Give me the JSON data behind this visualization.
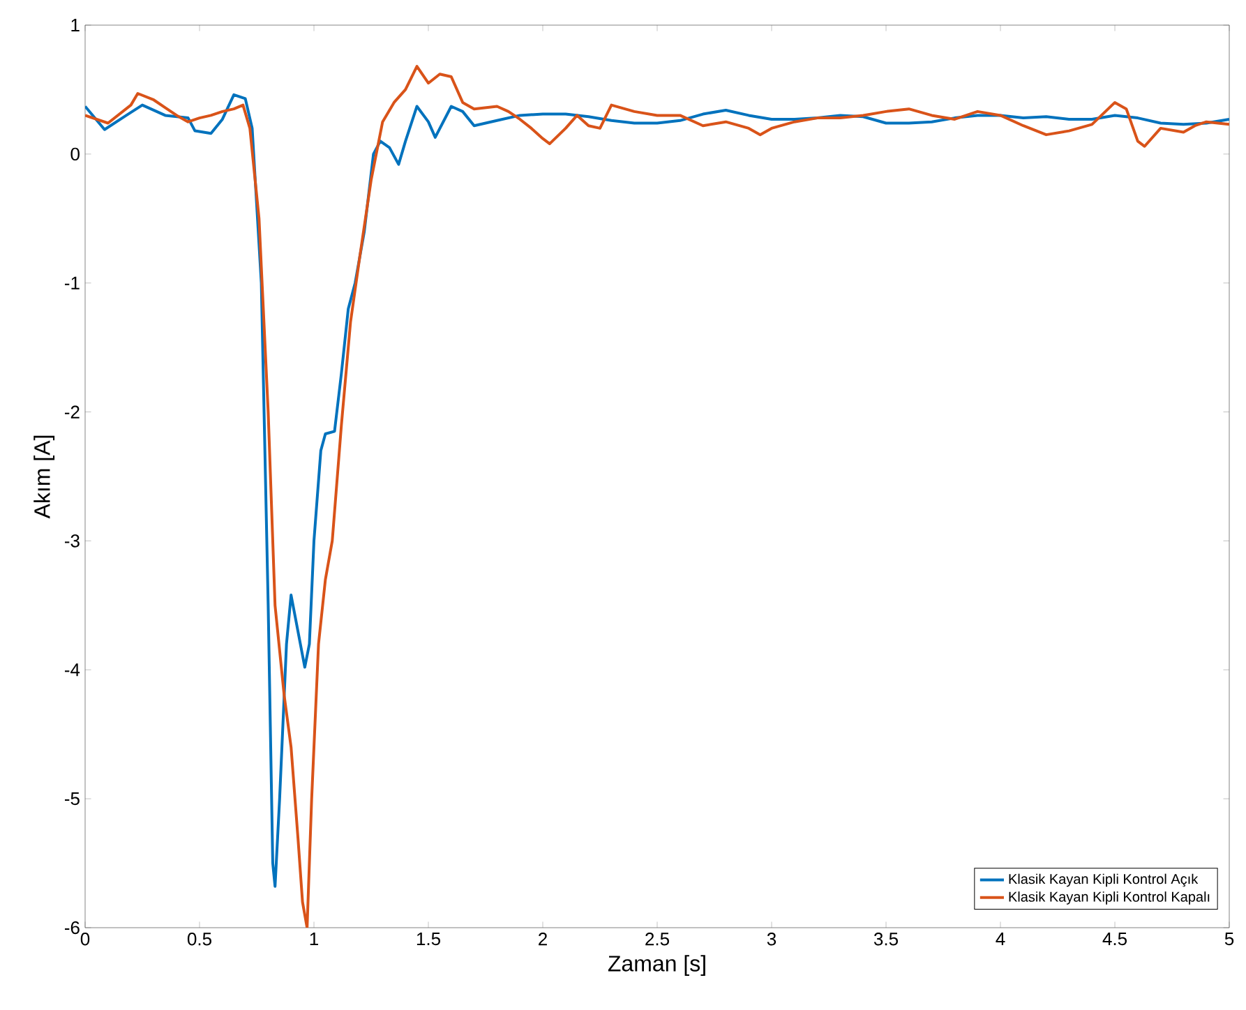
{
  "chart_data": {
    "type": "line",
    "xlabel": "Zaman [s]",
    "ylabel": "Akım [A]",
    "xlim": [
      0,
      5
    ],
    "ylim": [
      -6,
      1
    ],
    "xticks": [
      0,
      0.5,
      1,
      1.5,
      2,
      2.5,
      3,
      3.5,
      4,
      4.5,
      5
    ],
    "yticks": [
      -6,
      -5,
      -4,
      -3,
      -2,
      -1,
      0,
      1
    ],
    "grid": false,
    "legend": "bottom right",
    "line_style": "solid",
    "marker": "none",
    "series": [
      {
        "name": "Klasik Kayan Kipli Kontrol Açık",
        "color": "#0072bd",
        "x": [
          0,
          0.085,
          0.18,
          0.25,
          0.35,
          0.45,
          0.48,
          0.55,
          0.6,
          0.65,
          0.7,
          0.73,
          0.77,
          0.8,
          0.82,
          0.83,
          0.85,
          0.88,
          0.9,
          0.93,
          0.96,
          0.98,
          1.0,
          1.03,
          1.05,
          1.09,
          1.12,
          1.15,
          1.18,
          1.22,
          1.26,
          1.29,
          1.33,
          1.37,
          1.4,
          1.45,
          1.5,
          1.53,
          1.6,
          1.65,
          1.7,
          1.8,
          1.9,
          2.0,
          2.1,
          2.2,
          2.3,
          2.4,
          2.5,
          2.6,
          2.7,
          2.8,
          2.9,
          3.0,
          3.1,
          3.2,
          3.3,
          3.4,
          3.5,
          3.6,
          3.7,
          3.8,
          3.9,
          4.0,
          4.1,
          4.2,
          4.3,
          4.4,
          4.5,
          4.6,
          4.7,
          4.8,
          4.9,
          5.0
        ],
        "values": [
          0.37,
          0.19,
          0.3,
          0.38,
          0.3,
          0.28,
          0.18,
          0.16,
          0.27,
          0.46,
          0.43,
          0.2,
          -1,
          -3.5,
          -5.5,
          -5.68,
          -5.0,
          -3.8,
          -3.42,
          -3.7,
          -3.98,
          -3.8,
          -3.0,
          -2.3,
          -2.17,
          -2.15,
          -1.7,
          -1.2,
          -1.0,
          -0.6,
          0.0,
          0.1,
          0.05,
          -0.08,
          0.1,
          0.37,
          0.25,
          0.13,
          0.37,
          0.33,
          0.22,
          0.26,
          0.3,
          0.31,
          0.31,
          0.29,
          0.26,
          0.24,
          0.24,
          0.26,
          0.31,
          0.34,
          0.3,
          0.27,
          0.27,
          0.28,
          0.3,
          0.29,
          0.24,
          0.24,
          0.25,
          0.28,
          0.3,
          0.3,
          0.28,
          0.29,
          0.27,
          0.27,
          0.3,
          0.28,
          0.24,
          0.23,
          0.24,
          0.27
        ]
      },
      {
        "name": "Klasik Kayan Kipli Kontrol Kapalı",
        "color": "#d95319",
        "x": [
          0,
          0.1,
          0.2,
          0.23,
          0.3,
          0.35,
          0.4,
          0.45,
          0.5,
          0.55,
          0.6,
          0.65,
          0.69,
          0.72,
          0.76,
          0.8,
          0.83,
          0.87,
          0.9,
          0.93,
          0.95,
          0.97,
          0.99,
          1.02,
          1.05,
          1.08,
          1.12,
          1.16,
          1.2,
          1.25,
          1.3,
          1.35,
          1.4,
          1.45,
          1.5,
          1.55,
          1.6,
          1.65,
          1.7,
          1.8,
          1.85,
          1.9,
          1.95,
          2.0,
          2.03,
          2.1,
          2.15,
          2.2,
          2.25,
          2.3,
          2.4,
          2.5,
          2.6,
          2.7,
          2.8,
          2.9,
          2.95,
          3.0,
          3.1,
          3.2,
          3.3,
          3.4,
          3.5,
          3.6,
          3.7,
          3.8,
          3.9,
          4.0,
          4.1,
          4.2,
          4.3,
          4.4,
          4.5,
          4.55,
          4.6,
          4.63,
          4.7,
          4.8,
          4.85,
          4.9,
          5.0
        ],
        "values": [
          0.3,
          0.24,
          0.38,
          0.47,
          0.42,
          0.36,
          0.3,
          0.25,
          0.28,
          0.3,
          0.33,
          0.35,
          0.38,
          0.2,
          -0.5,
          -2.0,
          -3.5,
          -4.2,
          -4.6,
          -5.3,
          -5.8,
          -6.0,
          -5.0,
          -3.8,
          -3.3,
          -3.0,
          -2.1,
          -1.3,
          -0.8,
          -0.2,
          0.25,
          0.4,
          0.5,
          0.68,
          0.55,
          0.62,
          0.6,
          0.4,
          0.35,
          0.37,
          0.33,
          0.27,
          0.2,
          0.12,
          0.08,
          0.2,
          0.3,
          0.22,
          0.2,
          0.38,
          0.33,
          0.3,
          0.3,
          0.22,
          0.25,
          0.2,
          0.15,
          0.2,
          0.25,
          0.28,
          0.28,
          0.3,
          0.33,
          0.35,
          0.3,
          0.27,
          0.33,
          0.3,
          0.22,
          0.15,
          0.18,
          0.23,
          0.4,
          0.35,
          0.1,
          0.06,
          0.2,
          0.17,
          0.22,
          0.25,
          0.23
        ]
      }
    ]
  }
}
